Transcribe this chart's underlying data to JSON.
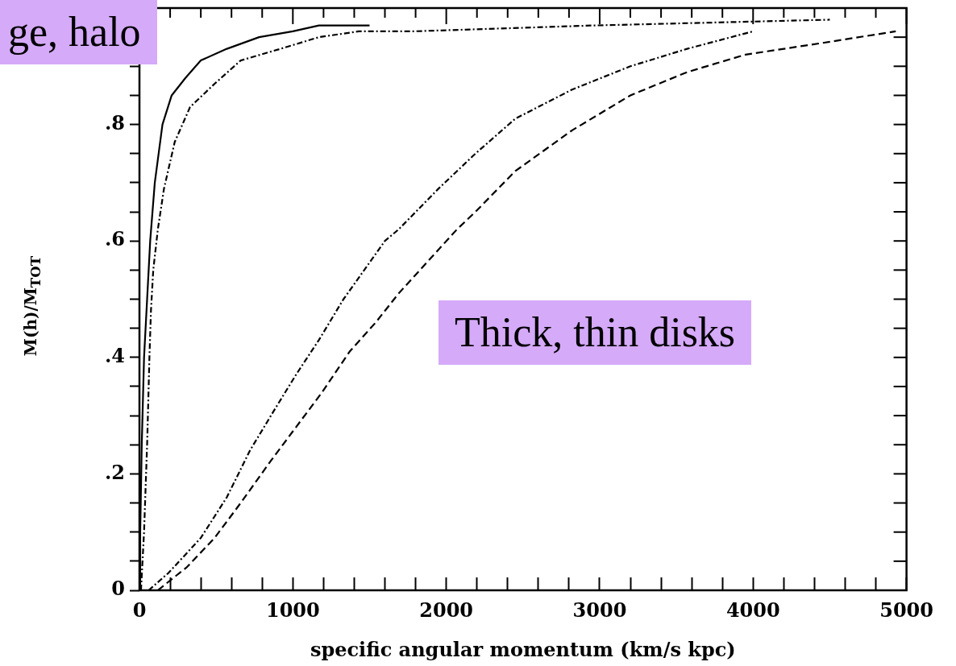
{
  "chart_data": {
    "type": "line",
    "xlabel": "specific angular momentum (km/s kpc)",
    "ylabel": "M(h)/M$_{TOT}$",
    "annotations": [
      "ge, halo",
      "Thick, thin disks"
    ],
    "xlim": [
      0,
      5000
    ],
    "ylim": [
      0,
      1
    ],
    "xticks": [
      0,
      {
        "value": 200,
        "label": null
      },
      {
        "value": 400,
        "label": null
      },
      {
        "value": 600,
        "label": null
      },
      {
        "value": 800,
        "label": null
      },
      1000,
      {
        "value": 1200,
        "label": null
      },
      {
        "value": 1400,
        "label": null
      },
      {
        "value": 1600,
        "label": null
      },
      {
        "value": 1800,
        "label": null
      },
      2000,
      {
        "value": 2200,
        "label": null
      },
      {
        "value": 2400,
        "label": null
      },
      {
        "value": 2600,
        "label": null
      },
      {
        "value": 2800,
        "label": null
      },
      3000,
      {
        "value": 3200,
        "label": null
      },
      {
        "value": 3400,
        "label": null
      },
      {
        "value": 3600,
        "label": null
      },
      {
        "value": 3800,
        "label": null
      },
      4000,
      {
        "value": 4200,
        "label": null
      },
      {
        "value": 4400,
        "label": null
      },
      {
        "value": 4600,
        "label": null
      },
      {
        "value": 4800,
        "label": null
      },
      5000
    ],
    "yticks": [
      0,
      {
        "value": 0.05,
        "label": null
      },
      {
        "value": 0.1,
        "label": null
      },
      {
        "value": 0.15,
        "label": null
      },
      {
        "value": 0.2,
        "label": ".2"
      },
      {
        "value": 0.25,
        "label": null
      },
      {
        "value": 0.3,
        "label": null
      },
      {
        "value": 0.35,
        "label": null
      },
      {
        "value": 0.4,
        "label": ".4"
      },
      {
        "value": 0.45,
        "label": null
      },
      {
        "value": 0.5,
        "label": null
      },
      {
        "value": 0.55,
        "label": null
      },
      {
        "value": 0.6,
        "label": ".6"
      },
      {
        "value": 0.65,
        "label": null
      },
      {
        "value": 0.7,
        "label": null
      },
      {
        "value": 0.75,
        "label": null
      },
      {
        "value": 0.8,
        "label": ".8"
      },
      {
        "value": 0.85,
        "label": null
      },
      {
        "value": 0.9,
        "label": null
      },
      {
        "value": 0.95,
        "label": null
      },
      {
        "value": 1,
        "label": null
      }
    ],
    "grid": false,
    "legend": false,
    "marker": "none",
    "series": [
      {
        "color": "#000000",
        "line_style": "solid",
        "x": [
          0,
          5,
          15,
          30,
          50,
          70,
          100,
          150,
          210,
          300,
          400,
          570,
          780,
          1000,
          1170,
          1500
        ],
        "values": [
          0,
          0.1,
          0.25,
          0.4,
          0.5,
          0.6,
          0.7,
          0.8,
          0.85,
          0.88,
          0.91,
          0.93,
          0.95,
          0.96,
          0.97,
          0.97
        ]
      },
      {
        "color": "#000000",
        "line_style": "dotted",
        "x": [
          10,
          30,
          50,
          65,
          75,
          90,
          120,
          160,
          230,
          330,
          490,
          660,
          920,
          1170,
          1430,
          1780,
          2950,
          4500
        ],
        "values": [
          0,
          0.1,
          0.25,
          0.4,
          0.48,
          0.55,
          0.62,
          0.69,
          0.77,
          0.83,
          0.87,
          0.91,
          0.93,
          0.95,
          0.96,
          0.96,
          0.97,
          0.98
        ]
      },
      {
        "color": "#000000",
        "line_style": "dotted",
        "x": [
          60,
          190,
          400,
          570,
          720,
          880,
          1020,
          1170,
          1330,
          1600,
          1690,
          1950,
          2070,
          2190,
          2450,
          2820,
          3200,
          3570,
          4000
        ],
        "values": [
          0,
          0.03,
          0.09,
          0.16,
          0.24,
          0.31,
          0.37,
          0.43,
          0.5,
          0.6,
          0.62,
          0.69,
          0.72,
          0.75,
          0.81,
          0.86,
          0.9,
          0.93,
          0.96
        ]
      },
      {
        "color": "#000000",
        "line_style": "dashed",
        "x": [
          120,
          310,
          490,
          660,
          850,
          1020,
          1190,
          1370,
          1540,
          1690,
          2070,
          2190,
          2450,
          2820,
          3200,
          3570,
          3950,
          4450,
          4930
        ],
        "values": [
          0,
          0.04,
          0.09,
          0.15,
          0.22,
          0.28,
          0.34,
          0.41,
          0.46,
          0.51,
          0.62,
          0.65,
          0.72,
          0.79,
          0.85,
          0.89,
          0.92,
          0.94,
          0.96
        ]
      }
    ]
  }
}
